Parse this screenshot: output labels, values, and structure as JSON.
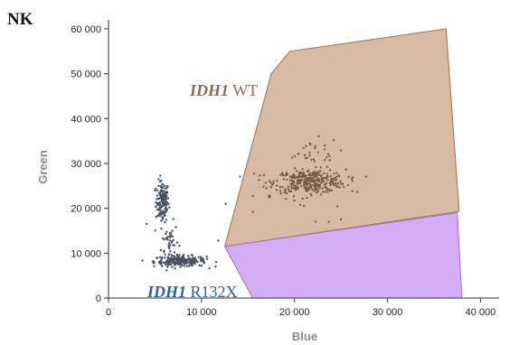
{
  "panel_label": "NK",
  "colors": {
    "wt_gate_fill": "#d4b49a",
    "wt_gate_stroke": "#9c6f52",
    "mut_gate_fill": "#d3a9f7",
    "mut_gate_stroke": "#a070d0",
    "wt_label": "#8b6c55",
    "mut_label": "#2d5fa3",
    "neg_cluster": "#4a5060",
    "wt_cluster": "#7a5a44",
    "axis": "#333333"
  },
  "chart_data": {
    "type": "scatter",
    "title": "NK",
    "xlabel": "Blue",
    "ylabel": "Green",
    "xlim": [
      0,
      42000
    ],
    "ylim": [
      0,
      62000
    ],
    "x_ticks": [
      {
        "value": 0,
        "label": "0"
      },
      {
        "value": 10000,
        "label": "10 000"
      },
      {
        "value": 20000,
        "label": "20 000"
      },
      {
        "value": 30000,
        "label": "30 000"
      },
      {
        "value": 40000,
        "label": "40 000"
      }
    ],
    "y_ticks": [
      {
        "value": 0,
        "label": "0"
      },
      {
        "value": 10000,
        "label": "10 000"
      },
      {
        "value": 20000,
        "label": "20 000"
      },
      {
        "value": 30000,
        "label": "30 000"
      },
      {
        "value": 40000,
        "label": "40 000"
      },
      {
        "value": 50000,
        "label": "50 000"
      },
      {
        "value": 60000,
        "label": "60 000"
      }
    ],
    "gates": [
      {
        "name_italic": "IDH1",
        "name_rest": " WT",
        "color_key": "wt",
        "vertices": [
          [
            12500,
            11500
          ],
          [
            17500,
            50000
          ],
          [
            19500,
            55000
          ],
          [
            36300,
            60000
          ],
          [
            37700,
            19300
          ]
        ]
      },
      {
        "name_italic": "IDH1",
        "name_rest": " R132X",
        "color_key": "mut",
        "vertices": [
          [
            12500,
            11500
          ],
          [
            37500,
            19000
          ],
          [
            38000,
            0
          ],
          [
            15500,
            0
          ]
        ]
      }
    ],
    "clusters": [
      {
        "color_key": "neg",
        "cx": 5800,
        "cy": 21500,
        "sx": 350,
        "sy": 2300,
        "n": 150
      },
      {
        "color_key": "neg",
        "cx": 6600,
        "cy": 12500,
        "sx": 450,
        "sy": 2200,
        "n": 45
      },
      {
        "color_key": "neg",
        "cx": 7700,
        "cy": 8200,
        "sx": 1400,
        "sy": 600,
        "n": 220
      },
      {
        "color_key": "wt",
        "cx": 21700,
        "cy": 26000,
        "sx": 1900,
        "sy": 1300,
        "n": 320
      },
      {
        "color_key": "wt",
        "cx": 21500,
        "cy": 32300,
        "sx": 1700,
        "sy": 1600,
        "n": 30
      },
      {
        "color_key": "wt",
        "cx": 18500,
        "cy": 22500,
        "sx": 3500,
        "sy": 3000,
        "n": 20
      }
    ],
    "outliers": [
      {
        "x": 4100,
        "y": 16500,
        "color_key": "neg"
      },
      {
        "x": 10300,
        "y": 7800,
        "color_key": "neg"
      },
      {
        "x": 11800,
        "y": 12800,
        "color_key": "neg"
      },
      {
        "x": 12600,
        "y": 21000,
        "color_key": "neg"
      },
      {
        "x": 15500,
        "y": 19200,
        "color_key": "wt"
      },
      {
        "x": 25000,
        "y": 17500,
        "color_key": "wt"
      }
    ]
  }
}
